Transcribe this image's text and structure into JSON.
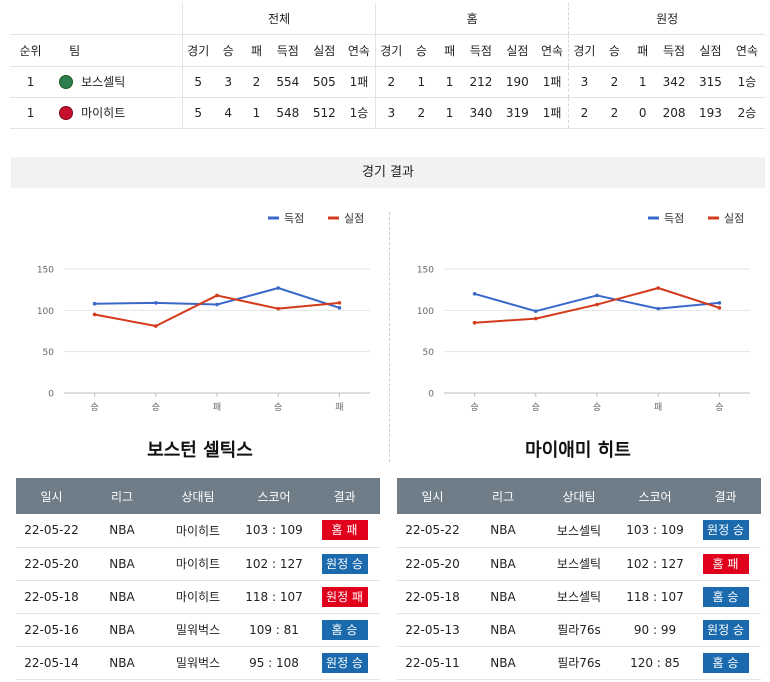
{
  "standings": {
    "groups": [
      "전체",
      "홈",
      "원정"
    ],
    "headers": {
      "rank": "순위",
      "team": "팀",
      "cols": [
        "경기",
        "승",
        "패",
        "득점",
        "실점",
        "연속"
      ]
    },
    "rows": [
      {
        "rank": "1",
        "team": "보스셀틱",
        "logo": "celtics-logo-icon",
        "total": [
          "5",
          "3",
          "2",
          "554",
          "505",
          "1패"
        ],
        "home": [
          "2",
          "1",
          "1",
          "212",
          "190",
          "1패"
        ],
        "away": [
          "3",
          "2",
          "1",
          "342",
          "315",
          "1승"
        ]
      },
      {
        "rank": "1",
        "team": "마이히트",
        "logo": "heat-logo-icon",
        "total": [
          "5",
          "4",
          "1",
          "548",
          "512",
          "1승"
        ],
        "home": [
          "3",
          "2",
          "1",
          "340",
          "319",
          "1패"
        ],
        "away": [
          "2",
          "2",
          "0",
          "208",
          "193",
          "2승"
        ]
      }
    ]
  },
  "section_title": "경기 결과",
  "chart_data": [
    {
      "type": "line",
      "categories": [
        "승",
        "승",
        "패",
        "승",
        "패"
      ],
      "series": [
        {
          "name": "득점",
          "color": "#3a68c8",
          "values": [
            108,
            109,
            107,
            127,
            103
          ]
        },
        {
          "name": "실점",
          "color": "#d43a1c",
          "values": [
            95,
            81,
            118,
            102,
            109
          ]
        }
      ],
      "ylim": [
        0,
        150
      ],
      "yticks": [
        "0",
        "50",
        "100",
        "150"
      ],
      "legend": "top-right",
      "grid": true
    },
    {
      "type": "line",
      "categories": [
        "승",
        "승",
        "승",
        "패",
        "승"
      ],
      "series": [
        {
          "name": "득점",
          "color": "#3a68c8",
          "values": [
            120,
            99,
            118,
            102,
            109
          ]
        },
        {
          "name": "실점",
          "color": "#d43a1c",
          "values": [
            85,
            90,
            107,
            127,
            103
          ]
        }
      ],
      "ylim": [
        0,
        150
      ],
      "yticks": [
        "0",
        "50",
        "100",
        "150"
      ],
      "legend": "top-right",
      "grid": true
    }
  ],
  "teams": [
    {
      "title": "보스턴 셀틱스",
      "headers": [
        "일시",
        "리그",
        "상대팀",
        "스코어",
        "결과"
      ],
      "games": [
        {
          "date": "22-05-22",
          "league": "NBA",
          "opponent": "마이히트",
          "score": "103 : 109",
          "result": "홈 패",
          "kind": "loss"
        },
        {
          "date": "22-05-20",
          "league": "NBA",
          "opponent": "마이히트",
          "score": "102 : 127",
          "result": "원정 승",
          "kind": "win"
        },
        {
          "date": "22-05-18",
          "league": "NBA",
          "opponent": "마이히트",
          "score": "118 : 107",
          "result": "원정 패",
          "kind": "loss"
        },
        {
          "date": "22-05-16",
          "league": "NBA",
          "opponent": "밀워벅스",
          "score": "109 : 81",
          "result": "홈 승",
          "kind": "win"
        },
        {
          "date": "22-05-14",
          "league": "NBA",
          "opponent": "밀워벅스",
          "score": "95 : 108",
          "result": "원정 승",
          "kind": "win"
        }
      ]
    },
    {
      "title": "마이애미 히트",
      "headers": [
        "일시",
        "리그",
        "상대팀",
        "스코어",
        "결과"
      ],
      "games": [
        {
          "date": "22-05-22",
          "league": "NBA",
          "opponent": "보스셀틱",
          "score": "103 : 109",
          "result": "원정 승",
          "kind": "win"
        },
        {
          "date": "22-05-20",
          "league": "NBA",
          "opponent": "보스셀틱",
          "score": "102 : 127",
          "result": "홈 패",
          "kind": "loss"
        },
        {
          "date": "22-05-18",
          "league": "NBA",
          "opponent": "보스셀틱",
          "score": "118 : 107",
          "result": "홈 승",
          "kind": "win"
        },
        {
          "date": "22-05-13",
          "league": "NBA",
          "opponent": "필라76s",
          "score": "90 : 99",
          "result": "원정 승",
          "kind": "win"
        },
        {
          "date": "22-05-11",
          "league": "NBA",
          "opponent": "필라76s",
          "score": "120 : 85",
          "result": "홈 승",
          "kind": "win"
        }
      ]
    }
  ]
}
